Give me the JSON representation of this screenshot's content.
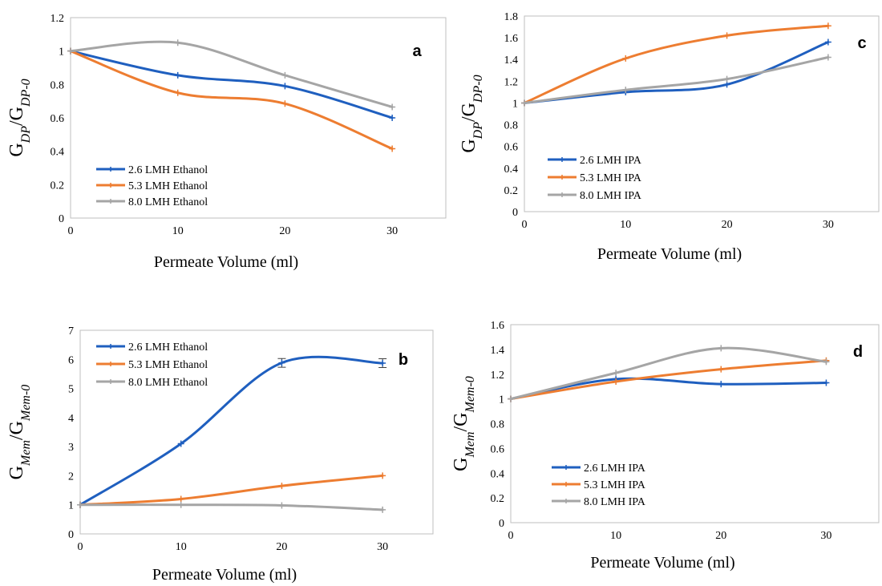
{
  "chart_data": [
    {
      "id": "a",
      "type": "line",
      "panel_label": "a",
      "xlabel": "Permeate Volume (ml)",
      "ylabel_base": "G",
      "ylabel_sub1": "DP",
      "ylabel_sub2": "DP-0",
      "xlim": [
        0,
        35
      ],
      "ylim": [
        0,
        1.2
      ],
      "xticks": [
        0,
        10,
        20,
        30
      ],
      "yticks": [
        0,
        0.2,
        0.4,
        0.6,
        0.8,
        1,
        1.2
      ],
      "x": [
        0,
        10,
        20,
        30
      ],
      "legend_position": "bottom-left",
      "series": [
        {
          "name": "2.6 LMH Ethanol",
          "color": "#1f5fbf",
          "values": [
            1.0,
            0.855,
            0.79,
            0.6
          ]
        },
        {
          "name": "5.3 LMH Ethanol",
          "color": "#ed7d31",
          "values": [
            1.0,
            0.75,
            0.685,
            0.415
          ]
        },
        {
          "name": "8.0 LMH Ethanol",
          "color": "#a5a5a5",
          "values": [
            1.0,
            1.05,
            0.855,
            0.665
          ]
        }
      ]
    },
    {
      "id": "c",
      "type": "line",
      "panel_label": "c",
      "xlabel": "Permeate Volume (ml)",
      "ylabel_base": "G",
      "ylabel_sub1": "DP",
      "ylabel_sub2": "DP-0",
      "xlim": [
        0,
        35
      ],
      "ylim": [
        0,
        1.8
      ],
      "xticks": [
        0,
        10,
        20,
        30
      ],
      "yticks": [
        0,
        0.2,
        0.4,
        0.6,
        0.8,
        1,
        1.2,
        1.4,
        1.6,
        1.8
      ],
      "x": [
        0,
        10,
        20,
        30
      ],
      "legend_position": "bottom-left",
      "series": [
        {
          "name": "2.6 LMH IPA",
          "color": "#1f5fbf",
          "values": [
            1.0,
            1.1,
            1.17,
            1.56
          ]
        },
        {
          "name": "5.3 LMH IPA",
          "color": "#ed7d31",
          "values": [
            1.0,
            1.41,
            1.62,
            1.71
          ]
        },
        {
          "name": "8.0 LMH IPA",
          "color": "#a5a5a5",
          "values": [
            1.0,
            1.12,
            1.22,
            1.42
          ]
        }
      ]
    },
    {
      "id": "b",
      "type": "line",
      "panel_label": "b",
      "xlabel": "Permeate Volume (ml)",
      "ylabel_base": "G",
      "ylabel_sub1": "Mem",
      "ylabel_sub2": "Mem-0",
      "xlim": [
        0,
        35
      ],
      "ylim": [
        0,
        7
      ],
      "xticks": [
        0,
        10,
        20,
        30
      ],
      "yticks": [
        0,
        1,
        2,
        3,
        4,
        5,
        6,
        7
      ],
      "x": [
        0,
        10,
        20,
        30
      ],
      "legend_position": "top-left",
      "series": [
        {
          "name": "2.6 LMH Ethanol",
          "color": "#1f5fbf",
          "values": [
            1.0,
            3.1,
            5.88,
            5.87
          ],
          "error": [
            0,
            0,
            0.15,
            0.15
          ]
        },
        {
          "name": "5.3 LMH Ethanol",
          "color": "#ed7d31",
          "values": [
            1.0,
            1.2,
            1.65,
            2.0
          ]
        },
        {
          "name": "8.0 LMH Ethanol",
          "color": "#a5a5a5",
          "values": [
            1.0,
            1.0,
            0.98,
            0.83
          ]
        }
      ]
    },
    {
      "id": "d",
      "type": "line",
      "panel_label": "d",
      "xlabel": "Permeate Volume (ml)",
      "ylabel_base": "G",
      "ylabel_sub1": "Mem",
      "ylabel_sub2": "Mem-0",
      "xlim": [
        0,
        35
      ],
      "ylim": [
        0,
        1.6
      ],
      "xticks": [
        0,
        10,
        20,
        30
      ],
      "yticks": [
        0,
        0.2,
        0.4,
        0.6,
        0.8,
        1,
        1.2,
        1.4,
        1.6
      ],
      "x": [
        0,
        10,
        20,
        30
      ],
      "legend_position": "bottom-left",
      "series": [
        {
          "name": "2.6 LMH IPA",
          "color": "#1f5fbf",
          "values": [
            1.0,
            1.16,
            1.12,
            1.13
          ]
        },
        {
          "name": "5.3 LMH IPA",
          "color": "#ed7d31",
          "values": [
            1.0,
            1.14,
            1.24,
            1.31
          ]
        },
        {
          "name": "8.0 LMH IPA",
          "color": "#a5a5a5",
          "values": [
            1.0,
            1.21,
            1.41,
            1.3
          ]
        }
      ]
    }
  ]
}
